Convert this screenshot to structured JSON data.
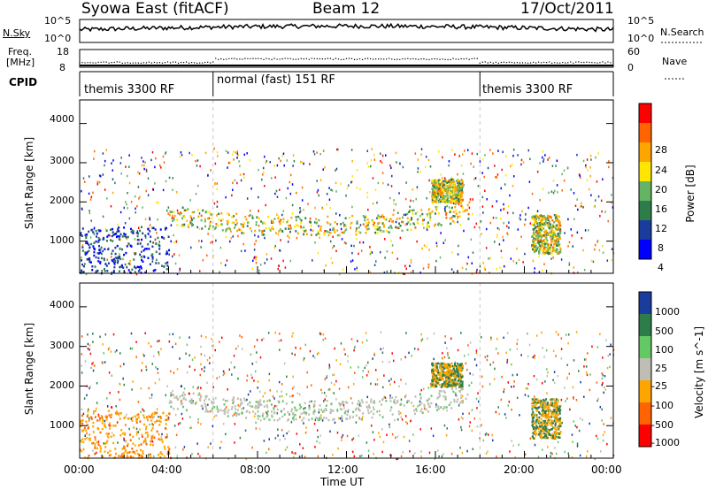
{
  "header": {
    "station": "Syowa East (fitACF)",
    "beam": "Beam 12",
    "date": "17/Oct/2011"
  },
  "nsky_panel": {
    "left_label": "N.Sky",
    "left_ticks": [
      "10^5",
      "10^0"
    ],
    "right_label": "N.Search",
    "right_ticks": [
      "10^5",
      "10^0"
    ]
  },
  "freq_panel": {
    "left_label_line1": "Freq.",
    "left_label_line2": "[MHz]",
    "left_ticks": [
      "18",
      "8"
    ],
    "right_label": "Nave",
    "right_ticks": [
      "60",
      "0"
    ]
  },
  "cpid": {
    "label": "CPID",
    "segments": [
      {
        "name": "themis 3300 RF",
        "start_hour": 0,
        "end_hour": 6
      },
      {
        "name": "normal (fast) 151 RF",
        "start_hour": 6,
        "end_hour": 18
      },
      {
        "name": "themis 3300 RF",
        "start_hour": 18,
        "end_hour": 24
      }
    ]
  },
  "power_panel": {
    "ylabel": "Slant Range [km]",
    "yticks": [
      "4000",
      "3000",
      "2000",
      "1000"
    ],
    "colorbar_label": "Power [dB]",
    "colorbar_ticks": [
      "28",
      "24",
      "20",
      "16",
      "12",
      "8",
      "4"
    ],
    "colors": [
      "#0000ff",
      "#1a3c9c",
      "#2d7d4b",
      "#64b464",
      "#ffe600",
      "#ffa500",
      "#ff6400",
      "#ff0000"
    ]
  },
  "velocity_panel": {
    "ylabel": "Slant Range [km]",
    "yticks": [
      "4000",
      "3000",
      "2000",
      "1000"
    ],
    "colorbar_label": "Velocity [m s^-1]",
    "colorbar_ticks": [
      "1000",
      "500",
      "100",
      "25",
      "-25",
      "-100",
      "-500",
      "-1000"
    ],
    "colors": [
      "#1a3c9c",
      "#2d7d4b",
      "#64c864",
      "#bebeb4",
      "#ffa500",
      "#ff6400",
      "#ff0000"
    ]
  },
  "xaxis": {
    "label": "Time UT",
    "ticks": [
      "00:00",
      "04:00",
      "08:00",
      "12:00",
      "16:00",
      "20:00",
      "00:00"
    ]
  },
  "chart_data": {
    "type": "heatmap",
    "title": "Syowa East (fitACF) Beam 12 17/Oct/2011",
    "xlabel": "Time UT",
    "ylabel": "Slant Range [km]",
    "xlim_hours": [
      0,
      24
    ],
    "ylim_km": [
      180,
      4600
    ],
    "panels": [
      {
        "name": "Power",
        "unit": "dB",
        "range": [
          0,
          30
        ]
      },
      {
        "name": "Velocity",
        "unit": "m s^-1",
        "range": [
          -1000,
          1000
        ]
      }
    ],
    "echo_bands": [
      {
        "start_hour": 4.0,
        "end_hour": 17.5,
        "range_start_km": 1700,
        "range_mid_km": 1050,
        "range_end_km": 1800,
        "power_db": 16
      },
      {
        "start_hour": 15.8,
        "end_hour": 17.2,
        "range_km": [
          2000,
          2600
        ],
        "power_db": 18
      },
      {
        "start_hour": 20.3,
        "end_hour": 21.6,
        "range_km": [
          700,
          1700
        ],
        "power_db": 20
      }
    ]
  }
}
